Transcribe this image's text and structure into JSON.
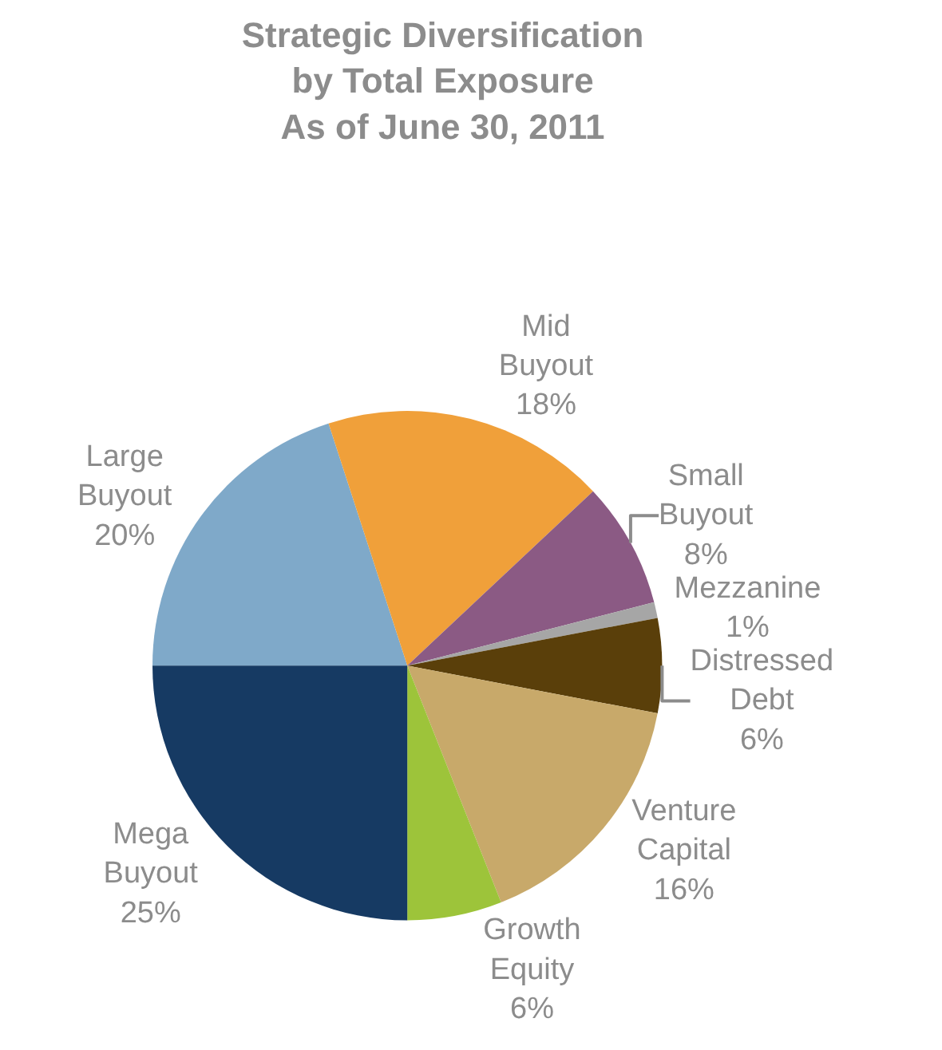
{
  "chart_data": {
    "type": "pie",
    "title": "Strategic Diversification\nby Total Exposure\nAs of June 30, 2011",
    "categories": [
      "Large Buyout",
      "Mid Buyout",
      "Small Buyout",
      "Mezzanine",
      "Distressed Debt",
      "Venture Capital",
      "Growth Equity",
      "Mega Buyout"
    ],
    "values": [
      20,
      18,
      8,
      1,
      6,
      16,
      6,
      25
    ],
    "colors": [
      "#7fa9c9",
      "#f0a03a",
      "#8b5a84",
      "#a6a6a6",
      "#5a3f0a",
      "#c8a96a",
      "#9dc43a",
      "#163a63"
    ],
    "value_labels": [
      "20%",
      "18%",
      "8%",
      "1%",
      "6%",
      "16%",
      "6%",
      "25%"
    ],
    "legend": false
  }
}
